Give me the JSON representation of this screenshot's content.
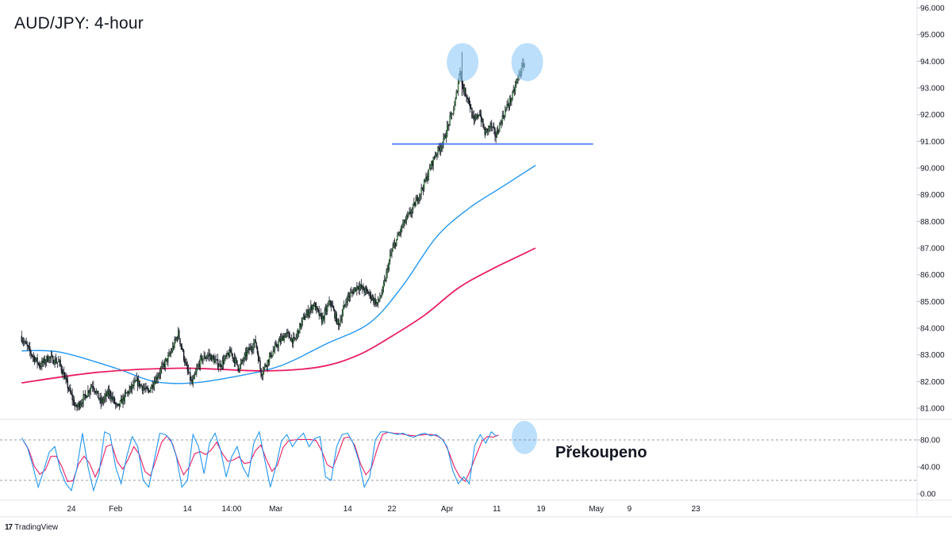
{
  "chart_title": "AUD/JPY: 4-hour",
  "brand": {
    "logo": "17",
    "name": "TradingView"
  },
  "oscillator_label": "Překoupeno",
  "colors": {
    "up_candle": "#4caf50",
    "down_candle": "#131722",
    "ma_fast": "#2196f3",
    "ma_slow": "#e91e63",
    "support_line": "#2962ff",
    "highlight": "#90caf9",
    "stoch_k": "#2196f3",
    "stoch_d": "#e91e63"
  },
  "chart_data": {
    "type": "candlestick",
    "title": "AUD/JPY: 4-hour",
    "price_axis": {
      "range": [
        80.6,
        96.0
      ],
      "ticks": [
        "96.000",
        "95.000",
        "94.000",
        "93.000",
        "92.000",
        "91.000",
        "90.000",
        "89.000",
        "88.000",
        "87.000",
        "86.000",
        "85.000",
        "84.000",
        "83.000",
        "82.000",
        "81.000"
      ]
    },
    "time_axis": {
      "labels": [
        "24",
        "Feb",
        "14",
        "14:00",
        "Mar",
        "14",
        "22",
        "Apr",
        "11",
        "19",
        "May",
        "9",
        "23"
      ],
      "label_positions_days": [
        0,
        8,
        21,
        29,
        37,
        50,
        58,
        68,
        77,
        85,
        95,
        101,
        113
      ]
    },
    "price_path": [
      [
        -9,
        83.7
      ],
      [
        -7,
        83.0
      ],
      [
        -5.5,
        82.6
      ],
      [
        -4,
        82.9
      ],
      [
        -2,
        82.7
      ],
      [
        -1,
        82.1
      ],
      [
        1,
        81.0
      ],
      [
        2.5,
        81.4
      ],
      [
        4,
        81.9
      ],
      [
        5.5,
        81.2
      ],
      [
        7,
        81.6
      ],
      [
        8.5,
        81.0
      ],
      [
        10,
        81.5
      ],
      [
        12,
        82.0
      ],
      [
        14,
        81.6
      ],
      [
        16,
        82.3
      ],
      [
        18,
        83.0
      ],
      [
        19.5,
        83.8
      ],
      [
        21,
        82.5
      ],
      [
        22,
        81.9
      ],
      [
        23.5,
        82.8
      ],
      [
        25,
        83.0
      ],
      [
        27,
        82.6
      ],
      [
        29,
        83.1
      ],
      [
        30.5,
        82.5
      ],
      [
        32,
        83.1
      ],
      [
        33.5,
        83.5
      ],
      [
        34.5,
        82.3
      ],
      [
        36,
        82.9
      ],
      [
        37.5,
        83.4
      ],
      [
        39,
        83.8
      ],
      [
        40.5,
        83.5
      ],
      [
        42,
        84.3
      ],
      [
        44,
        84.9
      ],
      [
        45.5,
        84.3
      ],
      [
        47,
        85.0
      ],
      [
        48.5,
        84.1
      ],
      [
        50,
        85.1
      ],
      [
        52,
        85.6
      ],
      [
        54,
        85.3
      ],
      [
        55.5,
        84.9
      ],
      [
        56.5,
        85.4
      ],
      [
        58,
        86.8
      ],
      [
        60,
        87.8
      ],
      [
        62,
        88.5
      ],
      [
        64,
        89.4
      ],
      [
        66,
        90.5
      ],
      [
        67.5,
        91.0
      ],
      [
        68.5,
        91.7
      ],
      [
        69.5,
        92.3
      ],
      [
        70.5,
        93.7
      ],
      [
        71,
        93.0
      ],
      [
        72,
        92.6
      ],
      [
        73,
        91.7
      ],
      [
        74,
        92.1
      ],
      [
        75,
        91.3
      ],
      [
        76,
        91.6
      ],
      [
        77,
        91.2
      ],
      [
        78,
        91.8
      ],
      [
        79,
        92.3
      ],
      [
        80,
        92.7
      ],
      [
        81,
        93.4
      ],
      [
        82,
        93.9
      ]
    ],
    "moving_averages": [
      {
        "points": [
          [
            -9,
            83.15
          ],
          [
            -2,
            83.1
          ],
          [
            8,
            82.5
          ],
          [
            15,
            82.0
          ],
          [
            22,
            81.95
          ],
          [
            30,
            82.2
          ],
          [
            38,
            82.6
          ],
          [
            46,
            83.4
          ],
          [
            54,
            84.2
          ],
          [
            60,
            85.6
          ],
          [
            66,
            87.4
          ],
          [
            72,
            88.5
          ],
          [
            78,
            89.3
          ],
          [
            84,
            90.1
          ]
        ]
      },
      {
        "points": [
          [
            -9,
            81.95
          ],
          [
            5,
            82.35
          ],
          [
            20,
            82.5
          ],
          [
            35,
            82.4
          ],
          [
            45,
            82.55
          ],
          [
            52,
            83.0
          ],
          [
            58,
            83.7
          ],
          [
            64,
            84.5
          ],
          [
            70,
            85.5
          ],
          [
            76,
            86.2
          ],
          [
            84,
            87.0
          ]
        ]
      }
    ],
    "support_level": 90.9,
    "support_span_days": [
      58,
      93
    ],
    "highlights": [
      {
        "day": 70.8,
        "price": 94.0,
        "panel": "price"
      },
      {
        "day": 82.5,
        "price": 94.0,
        "panel": "price"
      },
      {
        "day": 82.0,
        "value": 80,
        "panel": "oscillator"
      }
    ],
    "oscillator": {
      "ticks": [
        "80.00",
        "40.00",
        "0.00"
      ],
      "range": [
        0,
        100
      ],
      "levels": [
        80,
        20
      ],
      "k_path": [
        [
          -9,
          83
        ],
        [
          -8,
          70
        ],
        [
          -7,
          42
        ],
        [
          -6,
          10
        ],
        [
          -5,
          35
        ],
        [
          -4,
          62
        ],
        [
          -3,
          70
        ],
        [
          -2,
          35
        ],
        [
          -1,
          15
        ],
        [
          0,
          5
        ],
        [
          1,
          38
        ],
        [
          2,
          90
        ],
        [
          3,
          40
        ],
        [
          4,
          5
        ],
        [
          5,
          30
        ],
        [
          6,
          92
        ],
        [
          7,
          88
        ],
        [
          8,
          40
        ],
        [
          9,
          15
        ],
        [
          10,
          55
        ],
        [
          11,
          85
        ],
        [
          12,
          70
        ],
        [
          13,
          20
        ],
        [
          14,
          10
        ],
        [
          15,
          50
        ],
        [
          16,
          90
        ],
        [
          17,
          88
        ],
        [
          18,
          80
        ],
        [
          19,
          55
        ],
        [
          20,
          10
        ],
        [
          21,
          20
        ],
        [
          22,
          88
        ],
        [
          23,
          70
        ],
        [
          24,
          30
        ],
        [
          25,
          75
        ],
        [
          26,
          90
        ],
        [
          27,
          65
        ],
        [
          28,
          25
        ],
        [
          29,
          55
        ],
        [
          30,
          70
        ],
        [
          31,
          40
        ],
        [
          32,
          25
        ],
        [
          33,
          75
        ],
        [
          34,
          92
        ],
        [
          35,
          50
        ],
        [
          36,
          10
        ],
        [
          37,
          40
        ],
        [
          38,
          78
        ],
        [
          39,
          88
        ],
        [
          40,
          70
        ],
        [
          41,
          82
        ],
        [
          42,
          90
        ],
        [
          43,
          70
        ],
        [
          44,
          82
        ],
        [
          45,
          85
        ],
        [
          46,
          25
        ],
        [
          47,
          20
        ],
        [
          48,
          70
        ],
        [
          49,
          88
        ],
        [
          50,
          90
        ],
        [
          51,
          75
        ],
        [
          52,
          50
        ],
        [
          53,
          10
        ],
        [
          54,
          25
        ],
        [
          55,
          80
        ],
        [
          56,
          92
        ],
        [
          57,
          92
        ],
        [
          58,
          90
        ],
        [
          59,
          88
        ],
        [
          60,
          90
        ],
        [
          61,
          86
        ],
        [
          62,
          84
        ],
        [
          63,
          88
        ],
        [
          64,
          90
        ],
        [
          65,
          86
        ],
        [
          66,
          88
        ],
        [
          67,
          82
        ],
        [
          68,
          70
        ],
        [
          69,
          35
        ],
        [
          70,
          15
        ],
        [
          71,
          25
        ],
        [
          72,
          15
        ],
        [
          73,
          72
        ],
        [
          74,
          88
        ],
        [
          75,
          75
        ],
        [
          76,
          92
        ],
        [
          77,
          85
        ]
      ]
    }
  }
}
